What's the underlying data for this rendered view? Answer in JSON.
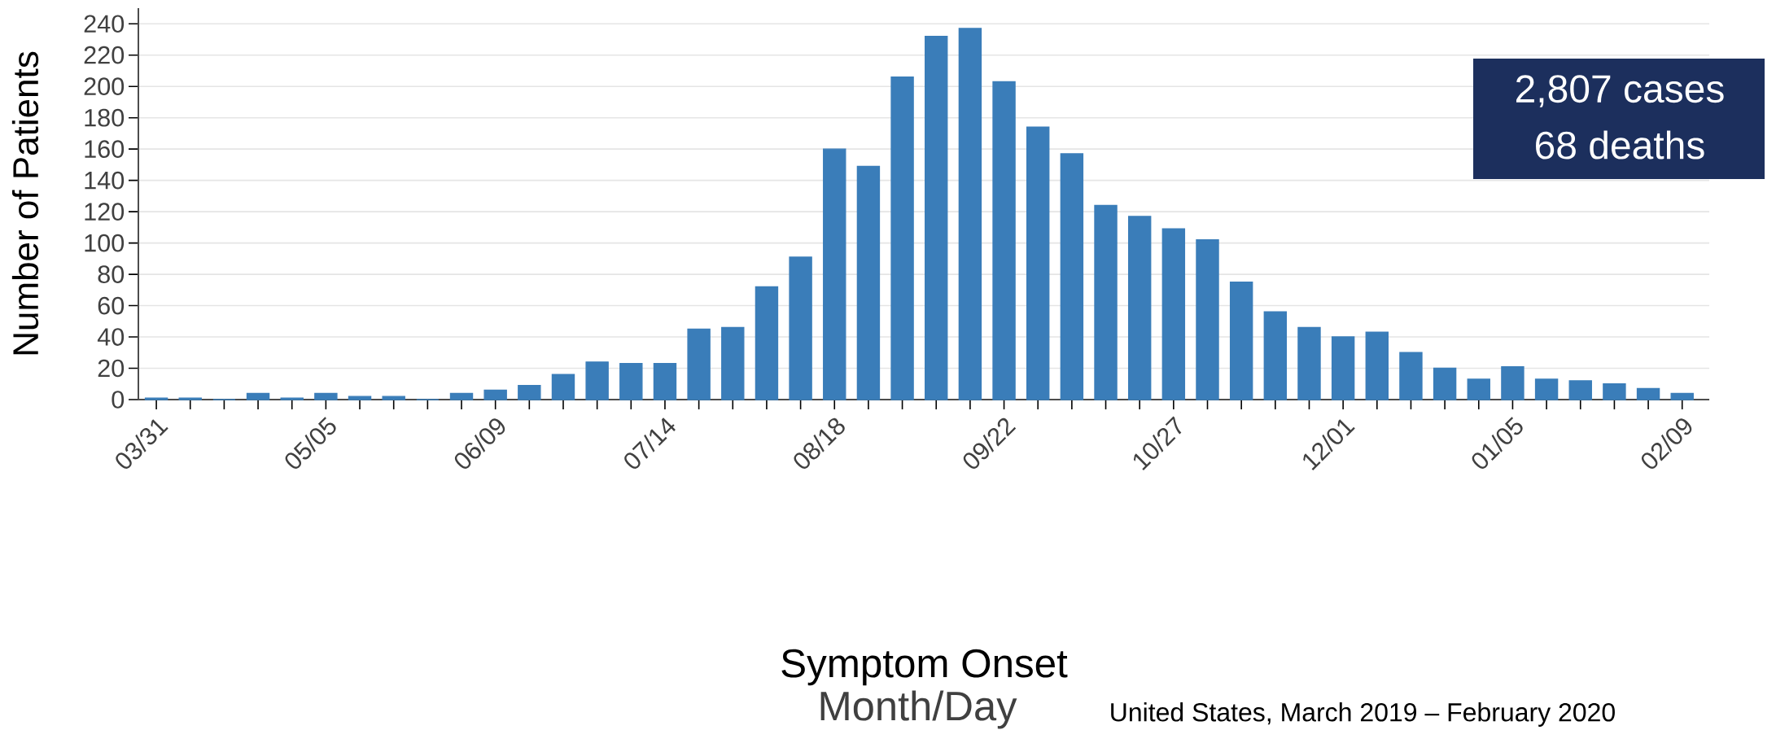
{
  "chart_data": {
    "type": "bar",
    "xlabel": "Symptom Onset",
    "ylabel": "Number of Patients",
    "categories": [
      "03/31",
      null,
      null,
      null,
      null,
      "05/05",
      null,
      null,
      null,
      null,
      "06/09",
      null,
      null,
      null,
      null,
      "07/14",
      null,
      null,
      null,
      null,
      "08/18",
      null,
      null,
      null,
      null,
      "09/22",
      null,
      null,
      null,
      null,
      "10/27",
      null,
      null,
      null,
      null,
      "12/01",
      null,
      null,
      null,
      null,
      "01/05",
      null,
      null,
      null,
      null,
      "02/09"
    ],
    "values": [
      1,
      1,
      0,
      4,
      1,
      4,
      2,
      2,
      0,
      4,
      6,
      9,
      16,
      24,
      23,
      23,
      45,
      46,
      72,
      91,
      160,
      149,
      206,
      232,
      237,
      203,
      174,
      157,
      124,
      117,
      109,
      102,
      75,
      56,
      46,
      40,
      43,
      30,
      20,
      13,
      21,
      13,
      12,
      10,
      7,
      4
    ],
    "color": "#3a7db9",
    "ylim": [
      0,
      250
    ],
    "yticks": [
      0,
      20,
      40,
      60,
      80,
      100,
      120,
      140,
      160,
      180,
      200,
      220,
      240
    ],
    "grid": "y",
    "annotations": [
      "2,807 cases",
      "68 deaths",
      "Month/Day",
      "United States, March 2019 – February 2020"
    ]
  }
}
